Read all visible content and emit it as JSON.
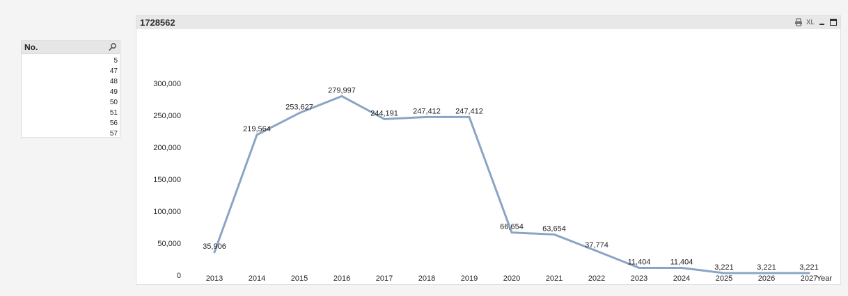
{
  "listbox": {
    "title": "No.",
    "items": [
      "5",
      "47",
      "48",
      "49",
      "50",
      "51",
      "56",
      "57"
    ]
  },
  "chart_object": {
    "caption": "1728562",
    "xl_label": "XL"
  },
  "colors": {
    "line": "#8aa5c4",
    "caption_bg": "#e8e8e8"
  },
  "chart_data": {
    "type": "line",
    "xlabel": "Year",
    "ylabel": "",
    "categories": [
      "2013",
      "2014",
      "2015",
      "2016",
      "2017",
      "2018",
      "2019",
      "2020",
      "2021",
      "2022",
      "2023",
      "2024",
      "2025",
      "2026",
      "2027"
    ],
    "values": [
      35906,
      219564,
      253627,
      279997,
      244191,
      247412,
      247412,
      66654,
      63654,
      37774,
      11404,
      11404,
      3221,
      3221,
      3221
    ],
    "data_labels": [
      "35,906",
      "219,564",
      "253,627",
      "279,997",
      "244,191",
      "247,412",
      "247,412",
      "66,654",
      "63,654",
      "37,774",
      "11,404",
      "11,404",
      "3,221",
      "3,221",
      "3,221"
    ],
    "yticks": [
      "0",
      "50,000",
      "100,000",
      "150,000",
      "200,000",
      "250,000",
      "300,000"
    ],
    "ytick_values": [
      0,
      50000,
      100000,
      150000,
      200000,
      250000,
      300000
    ],
    "ylim": [
      0,
      300000
    ],
    "grid": false
  }
}
